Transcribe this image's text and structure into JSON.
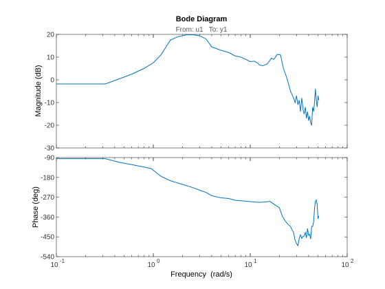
{
  "chart_data": {
    "type": "line",
    "title": "Bode Diagram",
    "subtitle": "From: u1   To: y1",
    "xlabel": "Frequency  (rad/s)",
    "x_scale": "log",
    "xlim": [
      0.1,
      100
    ],
    "x_ticks": [
      0.1,
      1,
      10,
      100
    ],
    "x_tick_labels": [
      {
        "base": "10",
        "exp": "-1"
      },
      {
        "base": "10",
        "exp": "0"
      },
      {
        "base": "10",
        "exp": "1"
      },
      {
        "base": "10",
        "exp": "2"
      }
    ],
    "grid": false,
    "color": "#0072bd",
    "magnitude": {
      "ylabel": "Magnitude (dB)",
      "ylim": [
        -30,
        20
      ],
      "y_ticks": [
        "20",
        "10",
        "0",
        "-10",
        "-20",
        "-30"
      ],
      "x": [
        0.1,
        0.18,
        0.32,
        0.45,
        0.6,
        0.8,
        1.0,
        1.2,
        1.5,
        1.8,
        2.2,
        2.6,
        3.0,
        3.5,
        4.0,
        5.0,
        6.0,
        7.0,
        8.0,
        9.0,
        10.0,
        11.0,
        11.8,
        12.5,
        13.5,
        15.0,
        16.5,
        17.5,
        19.0,
        20.5,
        22.0,
        24.0,
        26.0,
        28.0,
        29.0,
        30.0,
        31.0,
        32.0,
        33.0,
        34.0,
        35.0,
        36.0,
        37.0,
        38.0,
        39.0,
        40.0,
        41.0,
        42.0,
        43.0,
        44.0,
        45.0,
        46.0,
        47.0,
        48.0,
        49.0,
        50.0,
        51.0
      ],
      "y": [
        -1.8,
        -1.8,
        -1.8,
        0.5,
        2.5,
        5.0,
        7.5,
        11.0,
        17.5,
        19.0,
        19.8,
        19.8,
        19.4,
        18.0,
        14.5,
        13.0,
        12.0,
        10.5,
        10.0,
        9.0,
        8.0,
        8.2,
        7.5,
        6.5,
        6.2,
        7.0,
        9.5,
        9.0,
        11.2,
        11.0,
        5.0,
        0.5,
        -5.0,
        -8.0,
        -10.0,
        -7.0,
        -11.0,
        -9.0,
        -14.0,
        -8.0,
        -13.0,
        -15.0,
        -12.0,
        -17.0,
        -14.0,
        -18.0,
        -16.0,
        -19.0,
        -20.0,
        -12.0,
        -14.0,
        -10.0,
        -4.0,
        -9.0,
        -12.0,
        -7.0,
        -9.0
      ]
    },
    "phase": {
      "ylabel": "Phase (deg)",
      "ylim": [
        -540,
        -90
      ],
      "y_ticks": [
        "-90",
        "-180",
        "-270",
        "-360",
        "-450",
        "-540"
      ],
      "x": [
        0.1,
        0.18,
        0.32,
        0.45,
        0.6,
        0.8,
        0.95,
        1.2,
        1.5,
        2.0,
        2.5,
        3.0,
        3.5,
        4.0,
        5.0,
        6.0,
        7.0,
        8.0,
        10.0,
        12.0,
        14.0,
        16.0,
        18.0,
        20.0,
        21.5,
        23.0,
        24.5,
        26.0,
        27.0,
        28.0,
        29.0,
        30.0,
        31.0,
        32.0,
        33.0,
        34.0,
        35.0,
        36.0,
        37.0,
        38.0,
        39.0,
        40.0,
        41.0,
        42.0,
        43.0,
        44.0,
        45.0,
        46.0,
        47.0,
        48.0,
        49.0,
        50.0,
        51.0
      ],
      "y": [
        -95,
        -95,
        -95,
        -112,
        -122,
        -133,
        -140,
        -175,
        -195,
        -212,
        -225,
        -238,
        -248,
        -263,
        -273,
        -276,
        -284,
        -286,
        -290,
        -293,
        -292,
        -289,
        -305,
        -318,
        -358,
        -378,
        -393,
        -403,
        -418,
        -431,
        -465,
        -480,
        -490,
        -458,
        -441,
        -457,
        -448,
        -446,
        -430,
        -455,
        -412,
        -443,
        -438,
        -460,
        -402,
        -403,
        -383,
        -322,
        -288,
        -283,
        -302,
        -368,
        -355
      ]
    }
  }
}
